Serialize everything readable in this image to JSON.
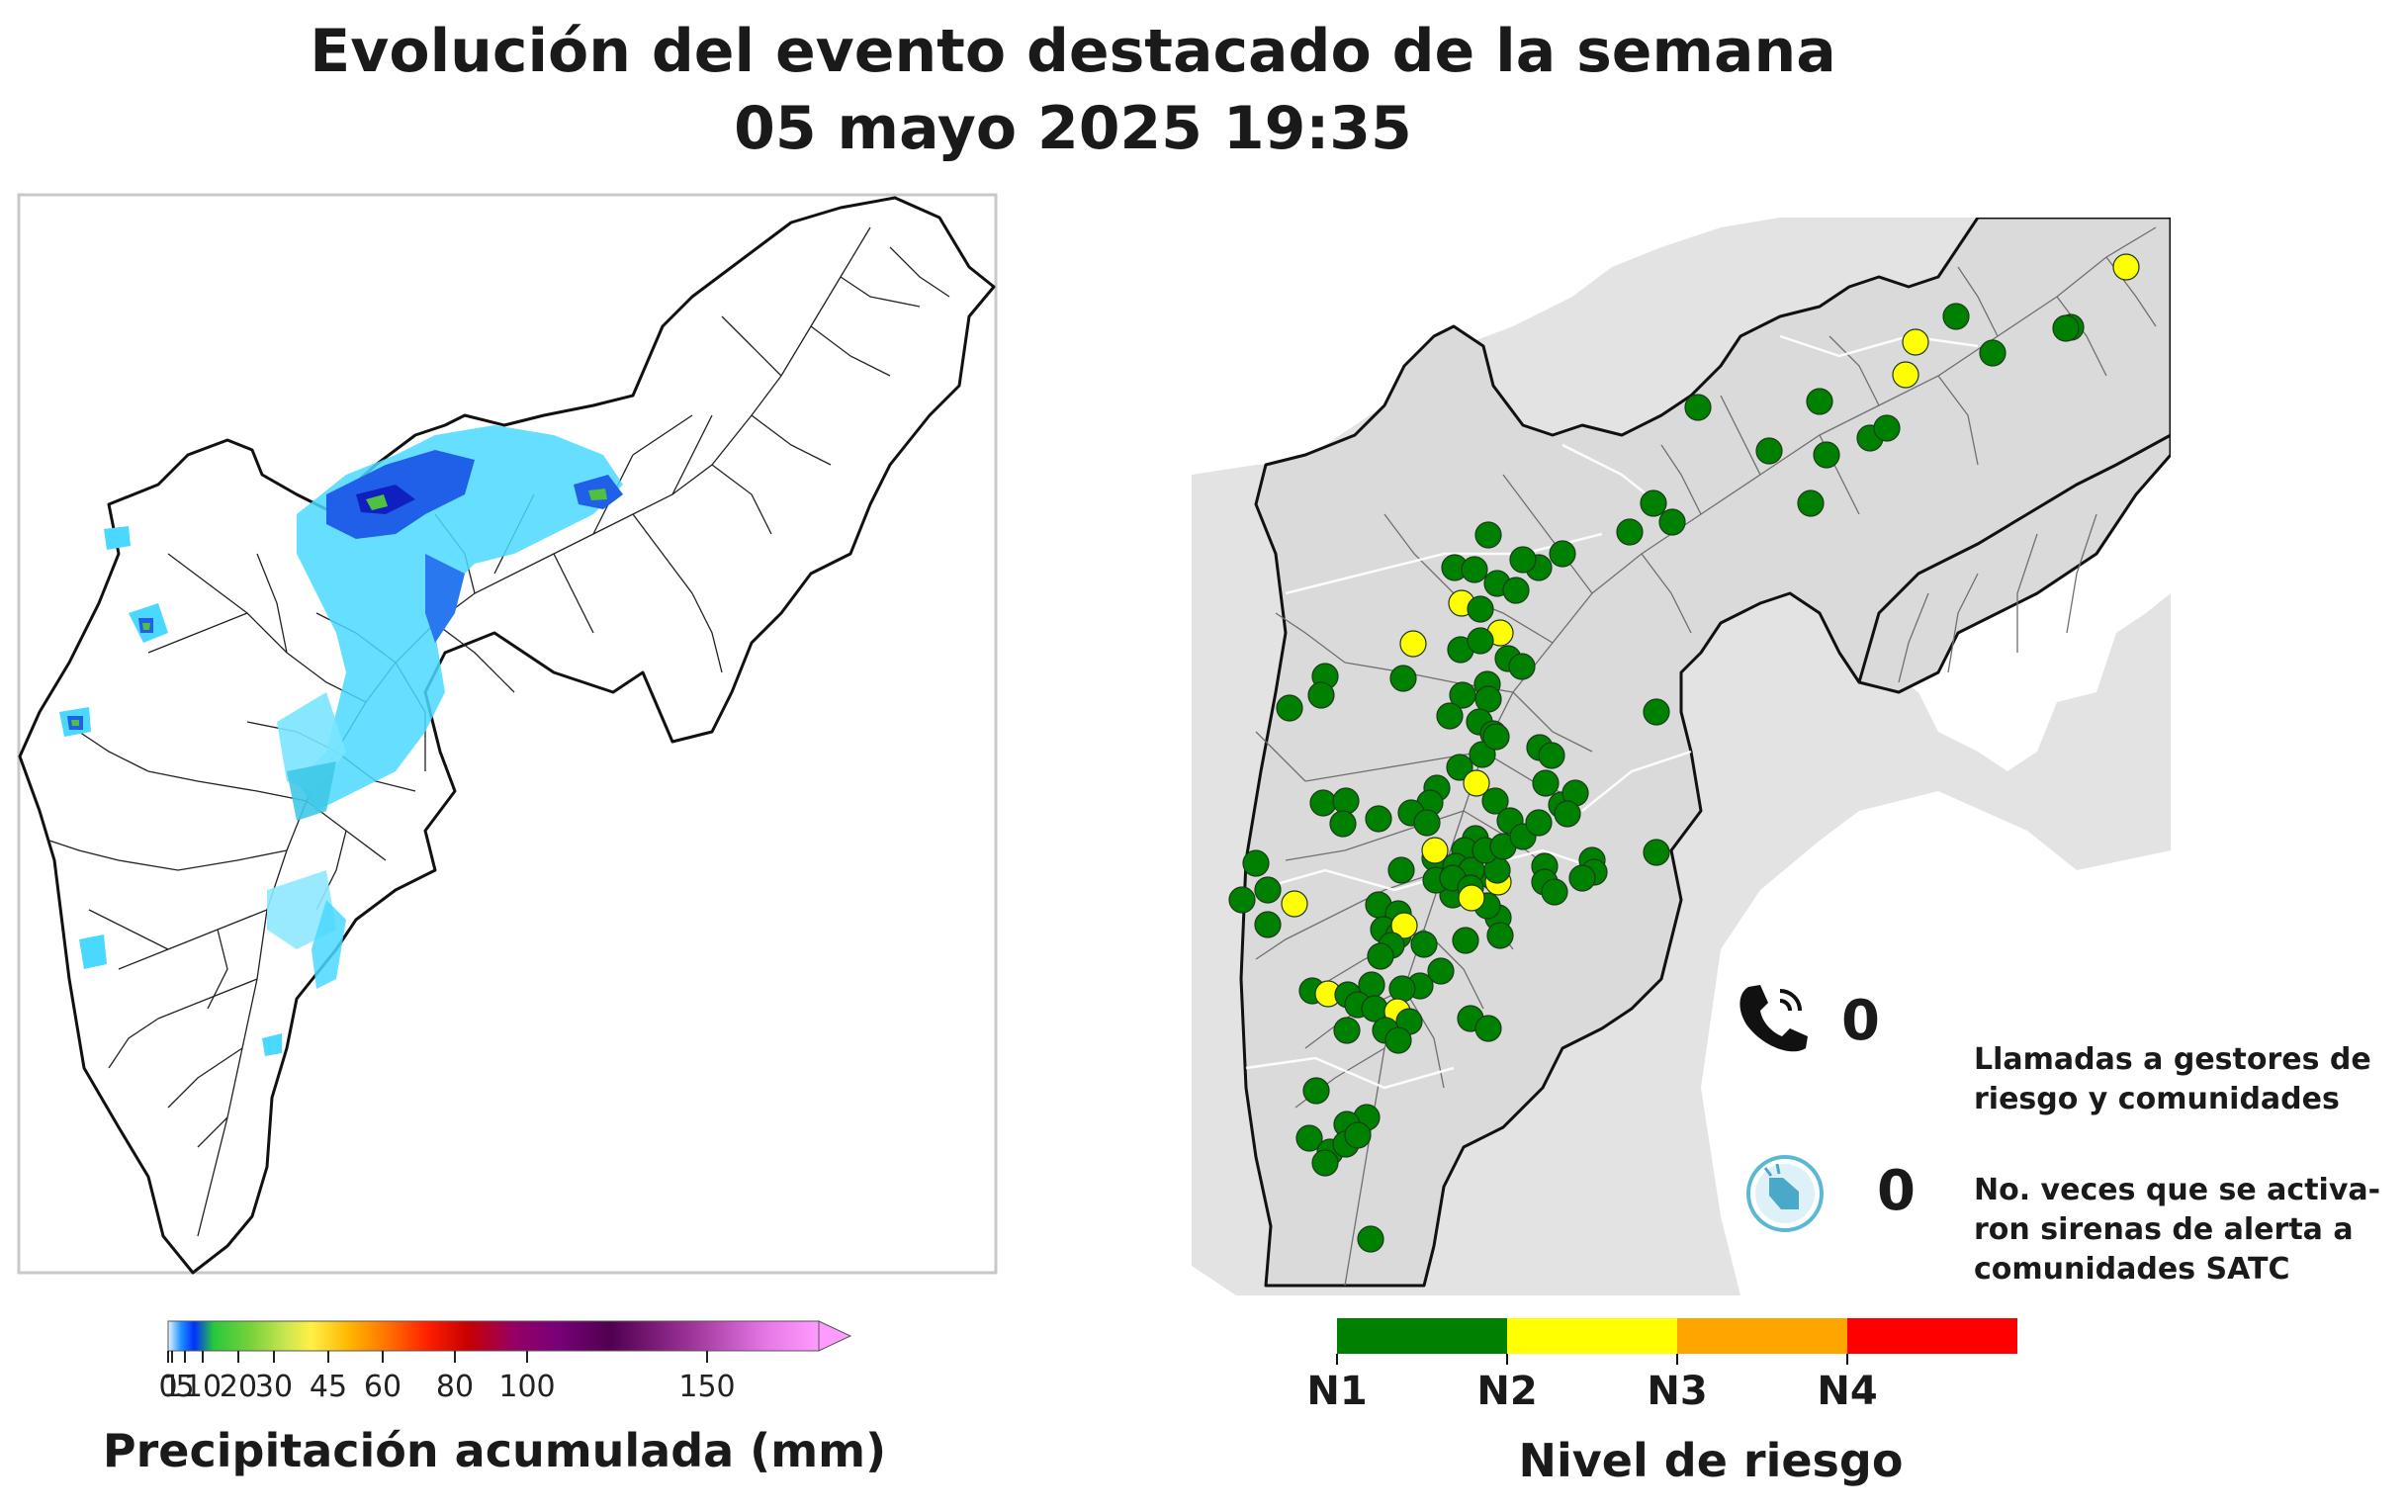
{
  "header": {
    "title_line1": "Evolución del evento destacado de la semana",
    "title_line2": "05 mayo 2025 19:35"
  },
  "precip_map": {
    "colorbar_label": "Precipitación acumulada (mm)",
    "colorbar_ticks": [
      "0",
      "1",
      "5",
      "10",
      "20",
      "30",
      "45",
      "60",
      "80",
      "100",
      "150"
    ],
    "colorbar_range_mm": [
      0,
      150
    ],
    "colorbar_colors": [
      "#e8f6ff",
      "#1e90ff",
      "#0030ff",
      "#28c83c",
      "#7cd23c",
      "#c8e650",
      "#fff046",
      "#ffb400",
      "#ff6e00",
      "#ff1e00",
      "#c80000",
      "#960064",
      "#780078",
      "#500050",
      "#9b3296",
      "#e678e6",
      "#ff9bff"
    ]
  },
  "risk_map": {
    "legend_label": "Nivel de riesgo",
    "levels": [
      {
        "name": "N1",
        "color": "#008000"
      },
      {
        "name": "N2",
        "color": "#ffff00"
      },
      {
        "name": "N3",
        "color": "#ffa500"
      },
      {
        "name": "N4",
        "color": "#ff0000"
      }
    ],
    "station_colors": {
      "green": "#008000",
      "yellow": "#ffff00"
    }
  },
  "indicators": {
    "calls_icon": "phone-icon",
    "calls_count": "0",
    "calls_text_line1": "Llamadas a gestores de",
    "calls_text_line2": "riesgo y comunidades",
    "sirens_icon": "siren-icon",
    "sirens_count": "0",
    "sirens_text_line1": "No. veces que se activa-",
    "sirens_text_line2": "ron sirenas de alerta a",
    "sirens_text_line3": "comunidades SATC"
  }
}
